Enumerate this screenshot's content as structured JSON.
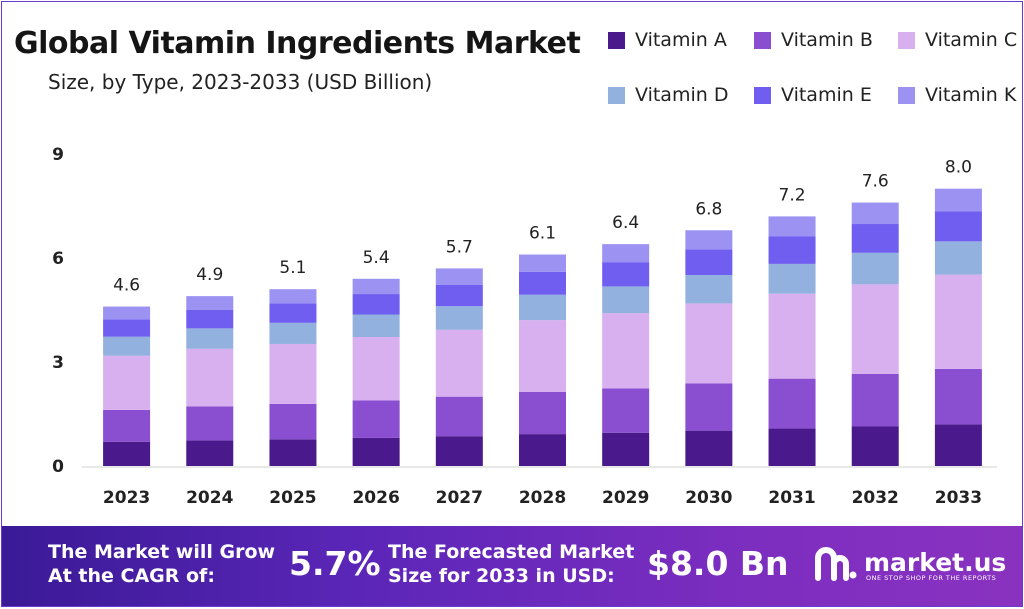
{
  "chart_data": {
    "type": "bar",
    "stacked": true,
    "title": "Global Vitamin Ingredients Market",
    "subtitle": "Size, by Type, 2023-2033 (USD Billion)",
    "xlabel": "",
    "ylabel": "",
    "ylim": [
      0,
      9
    ],
    "yticks": [
      "0",
      "3",
      "6",
      "9"
    ],
    "grid": false,
    "legend_position": "top-right",
    "categories": [
      "2023",
      "2024",
      "2025",
      "2026",
      "2027",
      "2028",
      "2029",
      "2030",
      "2031",
      "2032",
      "2033"
    ],
    "totals": [
      "4.6",
      "4.9",
      "5.1",
      "5.4",
      "5.7",
      "6.1",
      "6.4",
      "6.8",
      "7.2",
      "7.6",
      "8.0"
    ],
    "series": [
      {
        "name": "Vitamin A",
        "color": "#4a1a8c",
        "values": [
          0.7,
          0.74,
          0.77,
          0.81,
          0.86,
          0.92,
          0.96,
          1.02,
          1.08,
          1.14,
          1.2
        ]
      },
      {
        "name": "Vitamin B",
        "color": "#8a4fd0",
        "values": [
          0.92,
          0.98,
          1.02,
          1.08,
          1.14,
          1.22,
          1.28,
          1.36,
          1.44,
          1.52,
          1.6
        ]
      },
      {
        "name": "Vitamin C",
        "color": "#d9b0ef",
        "values": [
          1.56,
          1.66,
          1.73,
          1.83,
          1.93,
          2.07,
          2.17,
          2.31,
          2.45,
          2.58,
          2.72
        ]
      },
      {
        "name": "Vitamin D",
        "color": "#93b1df",
        "values": [
          0.55,
          0.59,
          0.61,
          0.65,
          0.68,
          0.73,
          0.77,
          0.82,
          0.86,
          0.91,
          0.96
        ]
      },
      {
        "name": "Vitamin E",
        "color": "#6f5ef0",
        "values": [
          0.5,
          0.53,
          0.56,
          0.59,
          0.62,
          0.66,
          0.7,
          0.74,
          0.79,
          0.83,
          0.87
        ]
      },
      {
        "name": "Vitamin K",
        "color": "#9b92f2",
        "values": [
          0.37,
          0.4,
          0.41,
          0.44,
          0.47,
          0.5,
          0.52,
          0.55,
          0.58,
          0.62,
          0.65
        ]
      }
    ]
  },
  "footer": {
    "cagr_line1": "The Market will Grow",
    "cagr_line2": "At the CAGR of:",
    "cagr_value": "5.7%",
    "forecast_line1": "The Forecasted Market",
    "forecast_line2": "Size for 2033 in USD:",
    "forecast_value": "$8.0 Bn",
    "logo_text": "market.us",
    "logo_tagline": "ONE STOP SHOP FOR THE REPORTS"
  }
}
